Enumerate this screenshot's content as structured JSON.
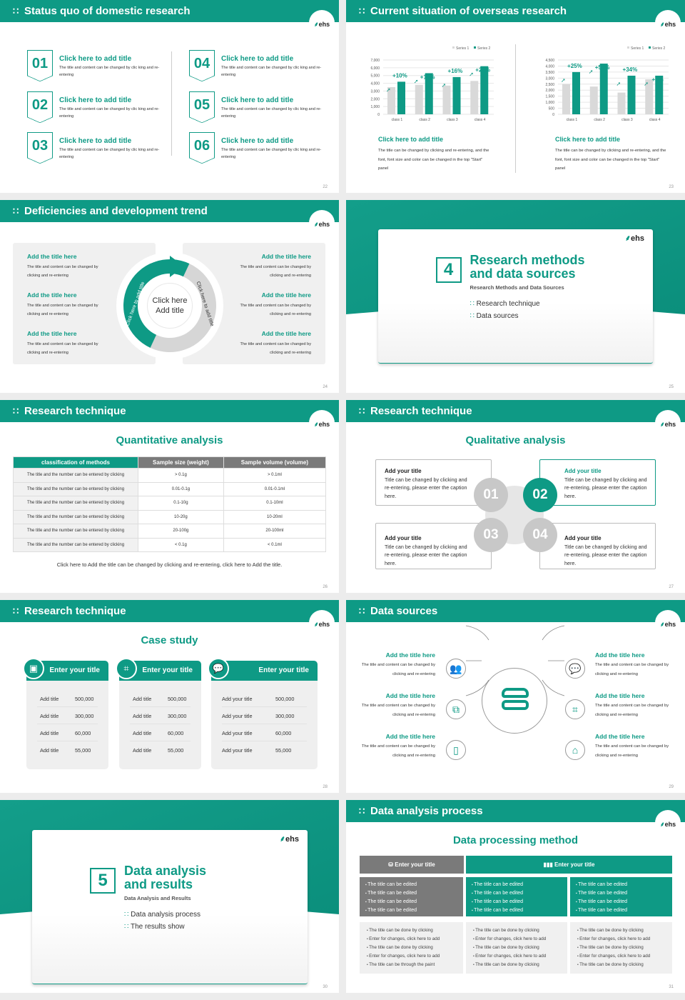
{
  "brand": {
    "logo": "ehs",
    "teal": "#0e9a85",
    "gray": "#7a7a7a",
    "light": "#d9d9d9"
  },
  "s22": {
    "title": "Status quo of domestic research",
    "page": "22",
    "items": [
      {
        "num": "01",
        "title": "Click here to add title",
        "text": "The title and content can be changed by clic king and re-entering"
      },
      {
        "num": "02",
        "title": "Click here to add title",
        "text": "The title and content can be changed by clic king and re-entering"
      },
      {
        "num": "03",
        "title": "Click here to add title",
        "text": "The title and content can be changed by clic king and re-entering"
      },
      {
        "num": "04",
        "title": "Click here to add title",
        "text": "The title and content can be changed by clic king and re-entering"
      },
      {
        "num": "05",
        "title": "Click here to add title",
        "text": "The title and content can be changed by clic king and re-entering"
      },
      {
        "num": "06",
        "title": "Click here to add title",
        "text": "The title and content can be changed by clic king and re-entering"
      }
    ]
  },
  "s23": {
    "title": "Current situation of overseas research",
    "page": "23",
    "blocks": [
      {
        "title": "Click here to add title",
        "text": "The title can be changed by clicking and re-entering, and the font, font size and color can be changed in the top \"Start\" panel"
      },
      {
        "title": "Click here to add title",
        "text": "The title can be changed by clicking and re-entering, and the font, font size and color can be changed in the top \"Start\" panel"
      }
    ]
  },
  "chart_data": [
    {
      "type": "bar",
      "categories": [
        "class 1",
        "class 2",
        "class 3",
        "class 4"
      ],
      "series": [
        {
          "name": "Series 1",
          "values": [
            3500,
            3800,
            3700,
            4300
          ]
        },
        {
          "name": "Series 2",
          "values": [
            4200,
            5300,
            4800,
            6200
          ]
        }
      ],
      "annotations": [
        "+10%",
        "+18%",
        "+16%",
        "+22%"
      ],
      "ylim": [
        0,
        7000
      ],
      "yticks": [
        "0",
        "1,000",
        "2,000",
        "3,000",
        "4,000",
        "5,000",
        "6,000",
        "7,000"
      ],
      "legend": "top-right",
      "grid": true
    },
    {
      "type": "bar",
      "categories": [
        "class 1",
        "class 2",
        "class 3",
        "class 4"
      ],
      "series": [
        {
          "name": "Series 1",
          "values": [
            2500,
            2300,
            1800,
            2900
          ]
        },
        {
          "name": "Series 2",
          "values": [
            3500,
            4200,
            3200,
            3200
          ]
        }
      ],
      "annotations": [
        "+25%",
        "+50%",
        "+34%",
        "+5%"
      ],
      "ylim": [
        0,
        4500
      ],
      "yticks": [
        "0",
        "500",
        "1,000",
        "1,500",
        "2,000",
        "2,500",
        "3,000",
        "3,500",
        "4,000",
        "4,500"
      ],
      "legend": "top-right",
      "grid": true
    }
  ],
  "s24": {
    "title": "Deficiencies and development trend",
    "page": "24",
    "center": "Click here Add title",
    "arc_left": "Click here to add title",
    "arc_right": "Click here to add title",
    "items": [
      {
        "title": "Add the title here",
        "text": "The title and content can be changed by clicking and re-entering"
      },
      {
        "title": "Add the title here",
        "text": "The title and content can be changed by clicking and re-entering"
      },
      {
        "title": "Add the title here",
        "text": "The title and content can be changed by clicking and re-entering"
      },
      {
        "title": "Add the title here",
        "text": "The title and content can be changed by clicking and re-entering"
      },
      {
        "title": "Add the title here",
        "text": "The title and content can be changed by clicking and re-entering"
      },
      {
        "title": "Add the title here",
        "text": "The title and content can be changed by clicking and re-entering"
      }
    ]
  },
  "s25": {
    "num": "4",
    "title1": "Research methods",
    "title2": "and data sources",
    "subtitle": "Research Methods and Data Sources",
    "items": [
      "Research technique",
      "Data sources"
    ],
    "page": "25"
  },
  "s26": {
    "title": "Research technique",
    "subtitle": "Quantitative analysis",
    "page": "26",
    "headers": [
      "classification of methods",
      "Sample size (weight)",
      "Sample volume (volume)"
    ],
    "rows": [
      [
        "The title and the number can be entered by clicking",
        "> 0.1g",
        "> 0.1ml"
      ],
      [
        "The title and the number can be entered by clicking",
        "0.01-0.1g",
        "0.01-0.1ml"
      ],
      [
        "The title and the number can be entered by clicking",
        "0.1-10g",
        "0.1-10ml"
      ],
      [
        "The title and the number can be entered by clicking",
        "10-20g",
        "10-20ml"
      ],
      [
        "The title and the number can be entered by clicking",
        "20-100g",
        "20-100ml"
      ],
      [
        "The title and the number can be entered by clicking",
        "< 0.1g",
        "< 0.1ml"
      ]
    ],
    "caption": "Click here to Add the title can be changed by clicking and re-entering, click here to Add the title."
  },
  "s27": {
    "title": "Research technique",
    "subtitle": "Qualitative analysis",
    "page": "27",
    "items": [
      {
        "num": "01",
        "title": "Add your title",
        "text": "Title can be changed by clicking and re-entering, please enter the caption here."
      },
      {
        "num": "02",
        "title": "Add your title",
        "text": "Title can be changed by clicking and re-entering, please enter the caption here."
      },
      {
        "num": "03",
        "title": "Add your title",
        "text": "Title can be changed by clicking and re-entering, please enter the caption here."
      },
      {
        "num": "04",
        "title": "Add your title",
        "text": "Title can be changed by clicking and re-entering, please enter the caption here."
      }
    ]
  },
  "s28": {
    "title": "Research technique",
    "subtitle": "Case study",
    "page": "28",
    "cards": [
      {
        "title": "Enter your title",
        "icon": "phone-user-icon",
        "rows": [
          [
            "Add title",
            "500,000"
          ],
          [
            "Add title",
            "300,000"
          ],
          [
            "Add title",
            "60,000"
          ],
          [
            "Add title",
            "55,000"
          ]
        ]
      },
      {
        "title": "Enter your title",
        "icon": "scan-icon",
        "rows": [
          [
            "Add title",
            "500,000"
          ],
          [
            "Add title",
            "300,000"
          ],
          [
            "Add title",
            "60,000"
          ],
          [
            "Add title",
            "55,000"
          ]
        ]
      },
      {
        "title": "Enter your title",
        "icon": "chat-icon",
        "rows": [
          [
            "Add your title",
            "500,000"
          ],
          [
            "Add your title",
            "300,000"
          ],
          [
            "Add your title",
            "60,000"
          ],
          [
            "Add your title",
            "55,000"
          ]
        ]
      }
    ]
  },
  "s29": {
    "title": "Data sources",
    "page": "29",
    "items": [
      {
        "title": "Add the title here",
        "text": "The title and content can be changed by clicking and re-entering",
        "icon": "people-icon"
      },
      {
        "title": "Add the title here",
        "text": "The title and content can be changed by clicking and re-entering",
        "icon": "boxes-icon"
      },
      {
        "title": "Add the title here",
        "text": "The title and content can be changed by clicking and re-entering",
        "icon": "tablet-icon"
      },
      {
        "title": "Add the title here",
        "text": "The title and content can be changed by clicking and re-entering",
        "icon": "chat-icon"
      },
      {
        "title": "Add the title here",
        "text": "The title and content can be changed by clicking and re-entering",
        "icon": "scan-icon"
      },
      {
        "title": "Add the title here",
        "text": "The title and content can be changed by clicking and re-entering",
        "icon": "building-icon"
      }
    ]
  },
  "s30": {
    "num": "5",
    "title1": "Data analysis",
    "title2": "and results",
    "subtitle": "Data Analysis and Results",
    "items": [
      "Data analysis process",
      "The results show"
    ],
    "page": "30"
  },
  "s31": {
    "title": "Data analysis process",
    "subtitle": "Data processing method",
    "page": "31",
    "head_left": "Enter your title",
    "head_right": "Enter your title",
    "boxes": [
      [
        "The title can be edited",
        "The title can be edited",
        "The title can be edited",
        "The title can be edited"
      ],
      [
        "The title can be edited",
        "The title can be edited",
        "The title can be edited",
        "The title can be edited"
      ],
      [
        "The title can be edited",
        "The title can be edited",
        "The title can be edited",
        "The title can be edited"
      ]
    ],
    "lists": [
      [
        "The title can be done by clicking",
        "Enter for changes, click here to add",
        "The title can be done by clicking",
        "Enter for changes, click here to add",
        "The title can be through the paint"
      ],
      [
        "The title can be done by clicking",
        "Enter for changes, click here to add",
        "The title can be done by clicking",
        "Enter for changes, click here to add",
        "The title can be done by clicking"
      ],
      [
        "The title can be done by clicking",
        "Enter for changes, click here to add",
        "The title can be done by clicking",
        "Enter for changes, click here to add",
        "The title can be done by clicking"
      ]
    ]
  }
}
